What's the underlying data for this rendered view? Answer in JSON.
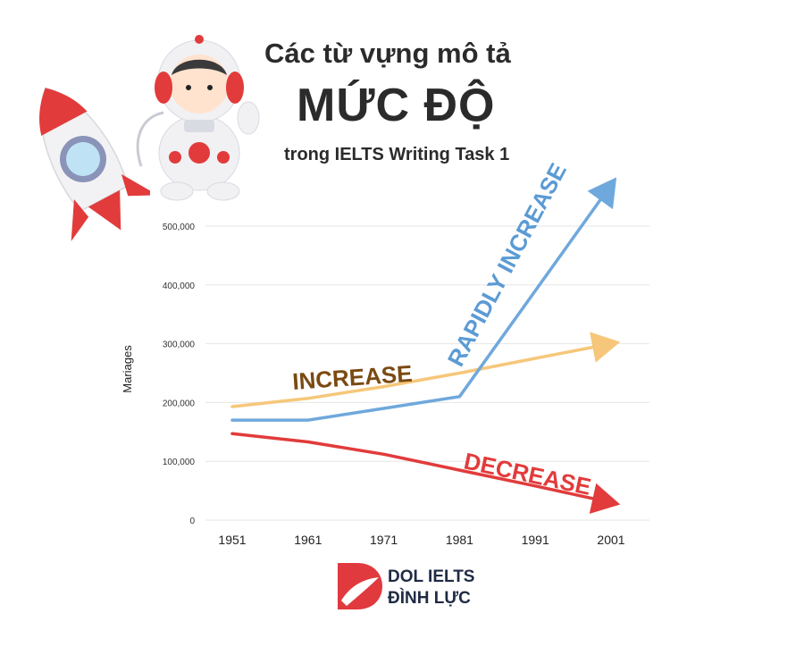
{
  "title": {
    "line1": "Các từ vựng  mô tả",
    "line2": "MỨC ĐỘ",
    "line3": "trong IELTS Writing Task 1"
  },
  "brand": {
    "line1": "DOL IELTS",
    "line2": "ĐÌNH LỰC",
    "color": "#e03a3e"
  },
  "chart_data": {
    "type": "line",
    "x": [
      1951,
      1961,
      1971,
      1981,
      1991,
      2001
    ],
    "x_tick_labels": [
      "1951",
      "1961",
      "1971",
      "1981",
      "1991",
      "2001"
    ],
    "ylabel": "Mariages",
    "xlabel": "",
    "ylim": [
      0,
      500000
    ],
    "y_ticks": [
      0,
      100000,
      200000,
      300000,
      400000,
      500000
    ],
    "y_tick_labels": [
      "0",
      "100,000",
      "200,000",
      "300,000",
      "400,000",
      "500,000"
    ],
    "grid": true,
    "series": [
      {
        "key": "increase",
        "color": "#f6c77a",
        "annotation": "INCREASE",
        "annotation_color": "#7a4a12",
        "points": [
          [
            1951,
            193000
          ],
          [
            1961,
            207000
          ],
          [
            1971,
            227000
          ],
          [
            1981,
            250000
          ],
          [
            1991,
            275000
          ],
          [
            2001,
            300000
          ]
        ]
      },
      {
        "key": "rapidly_increase",
        "color": "#6fa8dc",
        "annotation": "RAPIDLY INCREASE",
        "annotation_color": "#5b9bd5",
        "points": [
          [
            1951,
            170000
          ],
          [
            1961,
            170000
          ],
          [
            1971,
            190000
          ],
          [
            1981,
            210000
          ],
          [
            2001,
            570000
          ]
        ]
      },
      {
        "key": "decrease",
        "color": "#e23b3b",
        "annotation": "DECREASE",
        "annotation_color": "#e23b3b",
        "points": [
          [
            1951,
            147000
          ],
          [
            1961,
            133000
          ],
          [
            1971,
            112000
          ],
          [
            1981,
            85000
          ],
          [
            1991,
            58000
          ],
          [
            2001,
            30000
          ]
        ]
      }
    ]
  }
}
